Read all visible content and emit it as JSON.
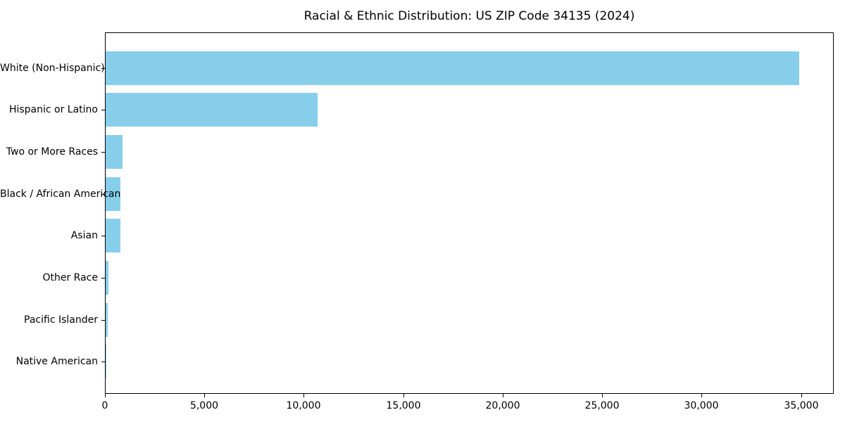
{
  "chart_data": {
    "type": "bar",
    "orientation": "horizontal",
    "title": "Racial & Ethnic Distribution: US ZIP Code 34135 (2024)",
    "categories": [
      "White (Non-Hispanic)",
      "Hispanic or Latino",
      "Two or More Races",
      "Black / African American",
      "Asian",
      "Other Race",
      "Pacific Islander",
      "Native American"
    ],
    "values": [
      34880,
      10670,
      840,
      760,
      755,
      145,
      95,
      20
    ],
    "xlabel": "",
    "ylabel": "",
    "xlim": [
      0,
      36640
    ],
    "x_ticks": [
      0,
      5000,
      10000,
      15000,
      20000,
      25000,
      30000,
      35000
    ],
    "x_tick_labels": [
      "0",
      "5,000",
      "10,000",
      "15,000",
      "20,000",
      "25,000",
      "30,000",
      "35,000"
    ],
    "bar_color": "#87CEEB",
    "grid": false,
    "legend": null,
    "sort": "descending"
  }
}
